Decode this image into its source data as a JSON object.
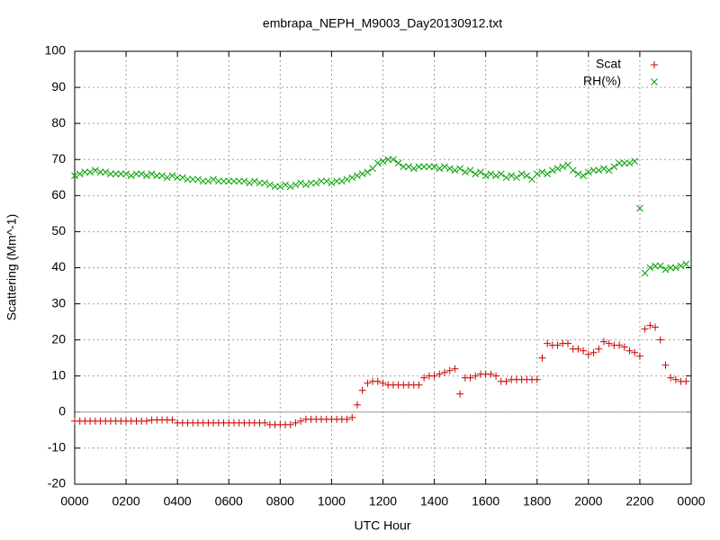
{
  "chart_data": {
    "type": "scatter",
    "title": "embrapa_NEPH_M9003_Day20130912.txt",
    "x_label": "UTC Hour",
    "y_label": "Scattering (Mm^-1)",
    "xlim": [
      0,
      24
    ],
    "ylim": [
      -20,
      100
    ],
    "xticks": [
      {
        "value": 0,
        "label": "0000"
      },
      {
        "value": 2,
        "label": "0200"
      },
      {
        "value": 4,
        "label": "0400"
      },
      {
        "value": 6,
        "label": "0600"
      },
      {
        "value": 8,
        "label": "0800"
      },
      {
        "value": 10,
        "label": "1000"
      },
      {
        "value": 12,
        "label": "1200"
      },
      {
        "value": 14,
        "label": "1400"
      },
      {
        "value": 16,
        "label": "1600"
      },
      {
        "value": 18,
        "label": "1800"
      },
      {
        "value": 20,
        "label": "2000"
      },
      {
        "value": 22,
        "label": "2200"
      },
      {
        "value": 24,
        "label": "0000"
      }
    ],
    "yticks": [
      -20,
      -10,
      0,
      10,
      20,
      30,
      40,
      50,
      60,
      70,
      80,
      90,
      100
    ],
    "grid": true,
    "zeroaxis": true,
    "legend": "top-right",
    "x": [
      0,
      0.2,
      0.4,
      0.6,
      0.8,
      1,
      1.2,
      1.4,
      1.6,
      1.8,
      2,
      2.2,
      2.4,
      2.6,
      2.8,
      3,
      3.2,
      3.4,
      3.6,
      3.8,
      4,
      4.2,
      4.4,
      4.6,
      4.8,
      5,
      5.2,
      5.4,
      5.6,
      5.8,
      6,
      6.2,
      6.4,
      6.6,
      6.8,
      7,
      7.2,
      7.4,
      7.6,
      7.8,
      8,
      8.2,
      8.4,
      8.6,
      8.8,
      9,
      9.2,
      9.4,
      9.6,
      9.8,
      10,
      10.2,
      10.4,
      10.6,
      10.8,
      11,
      11.2,
      11.4,
      11.6,
      11.8,
      12,
      12.2,
      12.4,
      12.6,
      12.8,
      13,
      13.2,
      13.4,
      13.6,
      13.8,
      14,
      14.2,
      14.4,
      14.6,
      14.8,
      15,
      15.2,
      15.4,
      15.6,
      15.8,
      16,
      16.2,
      16.4,
      16.6,
      16.8,
      17,
      17.2,
      17.4,
      17.6,
      17.8,
      18,
      18.2,
      18.4,
      18.6,
      18.8,
      19,
      19.2,
      19.4,
      19.6,
      19.8,
      20,
      20.2,
      20.4,
      20.6,
      20.8,
      21,
      21.2,
      21.4,
      21.6,
      21.8,
      22,
      22.2,
      22.4,
      22.6,
      22.8,
      23,
      23.2,
      23.4,
      23.6,
      23.8
    ],
    "series": [
      {
        "name": "Scat",
        "marker": "plus",
        "color": "#cc0000",
        "values": [
          -2.5,
          -2.5,
          -2.5,
          -2.5,
          -2.5,
          -2.5,
          -2.5,
          -2.5,
          -2.5,
          -2.5,
          -2.5,
          -2.5,
          -2.5,
          -2.5,
          -2.5,
          -2.2,
          -2.2,
          -2.2,
          -2.2,
          -2.2,
          -3,
          -3,
          -3,
          -3,
          -3,
          -3,
          -3,
          -3,
          -3,
          -3,
          -3,
          -3,
          -3,
          -3,
          -3,
          -3,
          -3,
          -3,
          -3.5,
          -3.5,
          -3.5,
          -3.5,
          -3.5,
          -3,
          -2.5,
          -2,
          -2,
          -2,
          -2,
          -2,
          -2,
          -2,
          -2,
          -2,
          -1.5,
          2,
          6,
          8,
          8.5,
          8.5,
          8,
          7.5,
          7.5,
          7.5,
          7.5,
          7.5,
          7.5,
          7.5,
          9.5,
          10,
          10,
          10.5,
          11,
          11.5,
          12,
          5,
          9.5,
          9.5,
          10,
          10.5,
          10.5,
          10.5,
          10,
          8.5,
          8.5,
          9,
          9,
          9,
          9,
          9,
          9,
          15,
          19,
          18.5,
          18.5,
          19,
          19,
          17.5,
          17.5,
          17,
          16,
          16.5,
          17.5,
          19.5,
          19,
          18.5,
          18.5,
          18,
          17,
          16.5,
          15.5,
          23,
          24,
          23.5,
          20,
          13,
          9.5,
          9,
          8.5,
          8.5
        ]
      },
      {
        "name": "RH(%)",
        "marker": "cross",
        "color": "#00a000",
        "values": [
          65.5,
          66,
          66.5,
          66.5,
          67,
          66.5,
          66.5,
          66,
          66,
          66,
          66,
          65.5,
          66,
          66,
          65.5,
          66,
          65.5,
          65.5,
          65,
          65.5,
          65,
          65,
          64.5,
          64.5,
          64.5,
          64,
          64,
          64.5,
          64,
          64,
          64,
          64,
          64,
          64,
          63.5,
          64,
          63.5,
          63.5,
          63,
          62.5,
          62.5,
          63,
          62.5,
          63,
          63.5,
          63,
          63.5,
          63.5,
          64,
          64,
          63.5,
          64,
          64,
          64.5,
          65,
          65.5,
          66,
          66.5,
          67.5,
          69,
          69.5,
          70,
          70,
          69,
          68,
          68,
          67.5,
          68,
          68,
          68,
          68,
          67.5,
          68,
          67.5,
          67,
          67.5,
          66.5,
          67,
          66,
          66.5,
          65.5,
          66,
          65.5,
          66,
          65,
          65.5,
          65,
          66,
          65.5,
          64.5,
          66,
          66.5,
          66,
          67,
          67.5,
          68,
          68.5,
          67,
          66,
          65.5,
          66.5,
          67,
          67,
          67.5,
          67,
          68,
          69,
          69,
          69,
          69.5,
          56.5,
          38.5,
          40,
          40.5,
          40.5,
          39.5,
          40,
          40,
          40.5,
          41
        ]
      }
    ]
  }
}
